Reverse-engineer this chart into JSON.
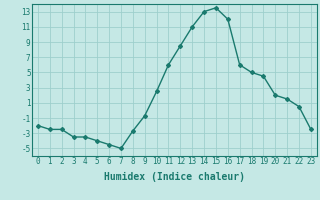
{
  "x": [
    0,
    1,
    2,
    3,
    4,
    5,
    6,
    7,
    8,
    9,
    10,
    11,
    12,
    13,
    14,
    15,
    16,
    17,
    18,
    19,
    20,
    21,
    22,
    23
  ],
  "y": [
    -2,
    -2.5,
    -2.5,
    -3.5,
    -3.5,
    -4,
    -4.5,
    -5,
    -2.7,
    -0.7,
    2.5,
    6,
    8.5,
    11,
    13,
    13.5,
    12,
    6,
    5,
    4.5,
    2,
    1.5,
    0.5,
    -2.5
  ],
  "line_color": "#1a7a6e",
  "marker": "D",
  "marker_size": 2.0,
  "bg_color": "#c5e8e5",
  "grid_color": "#9ecfcc",
  "xlabel": "Humidex (Indice chaleur)",
  "ylim": [
    -6,
    14
  ],
  "yticks": [
    -5,
    -3,
    -1,
    1,
    3,
    5,
    7,
    9,
    11,
    13
  ],
  "xticks": [
    0,
    1,
    2,
    3,
    4,
    5,
    6,
    7,
    8,
    9,
    10,
    11,
    12,
    13,
    14,
    15,
    16,
    17,
    18,
    19,
    20,
    21,
    22,
    23
  ],
  "tick_label_fontsize": 5.5,
  "xlabel_fontsize": 7.0,
  "line_width": 1.0
}
